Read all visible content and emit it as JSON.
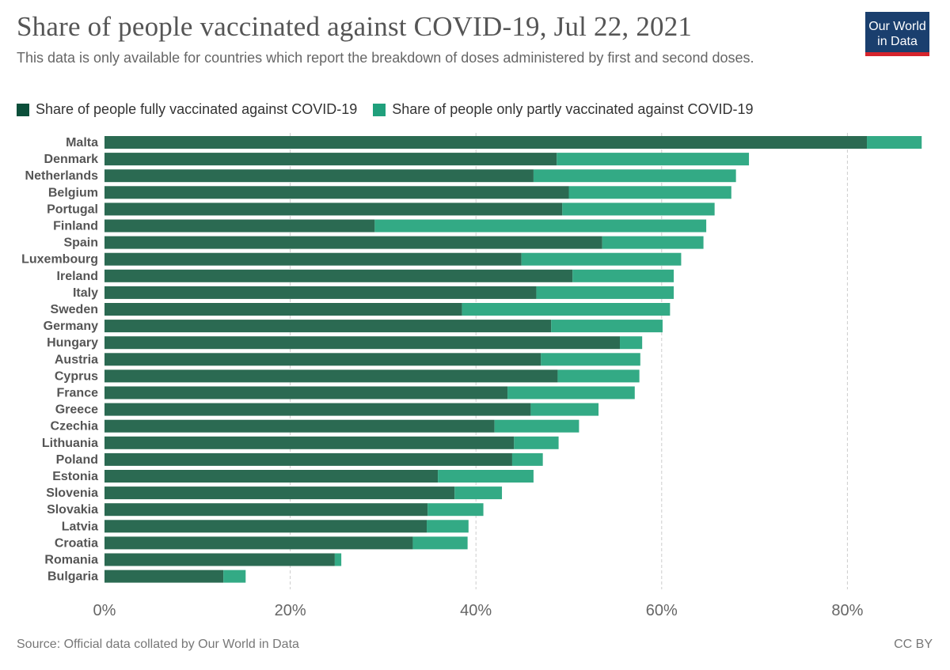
{
  "header": {
    "title": "Share of people vaccinated against COVID-19, Jul 22, 2021",
    "subtitle": "This data is only available for countries which report the breakdown of doses administered by first and second doses.",
    "logo_line1": "Our World",
    "logo_line2": "in Data"
  },
  "legend": {
    "fully": "Share of people fully vaccinated against COVID-19",
    "partly": "Share of people only partly vaccinated against COVID-19"
  },
  "colors": {
    "fully": "#2b6a52",
    "partly": "#33aa85",
    "legend_fully": "#0b4f3a",
    "legend_partly": "#20a07c"
  },
  "footer": {
    "source": "Source: Official data collated by Our World in Data",
    "license": "CC BY"
  },
  "chart_data": {
    "type": "bar",
    "orientation": "horizontal",
    "stacked": true,
    "categories": [
      "Malta",
      "Denmark",
      "Netherlands",
      "Belgium",
      "Portugal",
      "Finland",
      "Spain",
      "Luxembourg",
      "Ireland",
      "Italy",
      "Sweden",
      "Germany",
      "Hungary",
      "Austria",
      "Cyprus",
      "France",
      "Greece",
      "Czechia",
      "Lithuania",
      "Poland",
      "Estonia",
      "Slovenia",
      "Slovakia",
      "Latvia",
      "Croatia",
      "Romania",
      "Bulgaria"
    ],
    "series": [
      {
        "name": "Share of people fully vaccinated against COVID-19",
        "values": [
          82.1,
          48.7,
          46.2,
          50.0,
          49.3,
          29.1,
          53.6,
          44.9,
          50.4,
          46.5,
          38.5,
          48.1,
          55.5,
          47.0,
          48.8,
          43.4,
          45.9,
          42.0,
          44.1,
          43.9,
          35.9,
          37.7,
          34.8,
          34.7,
          33.2,
          24.8,
          12.8
        ]
      },
      {
        "name": "Share of people only partly vaccinated against COVID-19",
        "values": [
          5.9,
          20.7,
          21.8,
          17.5,
          16.4,
          35.7,
          10.9,
          17.2,
          10.9,
          14.8,
          22.4,
          12.0,
          2.4,
          10.7,
          8.8,
          13.7,
          7.3,
          9.1,
          4.8,
          3.3,
          10.3,
          5.1,
          6.0,
          4.5,
          5.9,
          0.7,
          2.4
        ]
      }
    ],
    "x_ticks": [
      "0%",
      "20%",
      "40%",
      "60%",
      "80%"
    ],
    "x_tick_values": [
      0,
      20,
      40,
      60,
      80
    ],
    "xlim": [
      0,
      88
    ],
    "grid": "vertical dashed",
    "legend_position": "top-left"
  }
}
